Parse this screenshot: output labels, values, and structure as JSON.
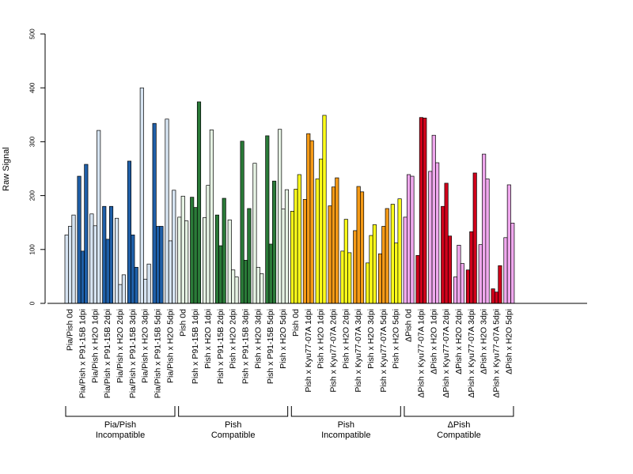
{
  "chart_data": {
    "type": "bar",
    "ylabel": "Raw Signal",
    "ylim": [
      0,
      500
    ],
    "yticks": [
      0,
      100,
      200,
      300,
      400,
      500
    ],
    "grid": false,
    "colors": {
      "blue": "#1f5fa8",
      "light_blue": "#d6e4f2",
      "green": "#2a7a38",
      "light_green": "#e6f3e4",
      "yellow": "#ffff1a",
      "orange": "#f59a17",
      "red": "#d0021b",
      "pink": "#f0a8ee"
    },
    "categories": [
      "Pia/Pish 0d",
      "Pia/Pish x P91-15B 1dpi",
      "Pia/Pish x H2O 1dpi",
      "Pia/Pish x P91-15B 2dpi",
      "Pia/Pish x H2O 2dpi",
      "Pia/Pish x P91-15B 3dpi",
      "Pia/Pish x H2O 3dpi",
      "Pia/Pish x P91-15B 5dpi",
      "Pia/Pish x H2O 5dpi",
      "Pish 0d",
      "Pish x P91-15B 1dpi",
      "Pish x H2O 1dpi",
      "Pish x P91-15B 2dpi",
      "Pish x H2O 2dpi",
      "Pish x P91-15B 3dpi",
      "Pish x H2O 3dpi",
      "Pish x P91-15B 5dpi",
      "Pish x H2O 5dpi",
      "Pish 0d",
      "Pish x Kyu77-07A 1dpi",
      "Pish x H2O 1dpi",
      "Pish x Kyu77-07A 2dpi",
      "Pish x H2O 2dpi",
      "Pish x Kyu77-07A 3dpi",
      "Pish x H2O 3dpi",
      "Pish x Kyu77-07A 5dpi",
      "Pish x H2O 5dpi",
      "ΔPish 0d",
      "ΔPish x Kyu77-07A 1dpi",
      "ΔPish x H2O 1dpi",
      "ΔPish x Kyu77-07A 2dpi",
      "ΔPish x H2O 2dpi",
      "ΔPish x Kyu77-07A 3dpi",
      "ΔPish x H2O 3dpi",
      "ΔPish x Kyu77-07A 5dpi",
      "ΔPish x H2O 5dpi"
    ],
    "values": [
      [
        127,
        143,
        164
      ],
      [
        236,
        97,
        258
      ],
      [
        166,
        144,
        321
      ],
      [
        180,
        119,
        180
      ],
      [
        158,
        35,
        53
      ],
      [
        264,
        127,
        67
      ],
      [
        400,
        45,
        73
      ],
      [
        334,
        143,
        143
      ],
      [
        342,
        116,
        210
      ],
      [
        160,
        199,
        153
      ],
      [
        197,
        178,
        374
      ],
      [
        159,
        219,
        322
      ],
      [
        164,
        107,
        195
      ],
      [
        155,
        62,
        49
      ],
      [
        301,
        80,
        176
      ],
      [
        260,
        67,
        55
      ],
      [
        311,
        110,
        227
      ],
      [
        323,
        175,
        211
      ],
      [
        171,
        212,
        239
      ],
      [
        193,
        315,
        302
      ],
      [
        231,
        268,
        349
      ],
      [
        181,
        216,
        233
      ],
      [
        97,
        156,
        94
      ],
      [
        135,
        217,
        207
      ],
      [
        75,
        126,
        146
      ],
      [
        92,
        143,
        176
      ],
      [
        184,
        112,
        194
      ],
      [
        160,
        239,
        236
      ],
      [
        89,
        345,
        344
      ],
      [
        245,
        312,
        261
      ],
      [
        180,
        223,
        125
      ],
      [
        49,
        108,
        74
      ],
      [
        62,
        133,
        242
      ],
      [
        109,
        277,
        231
      ],
      [
        27,
        21,
        70
      ],
      [
        122,
        220,
        149
      ]
    ],
    "bar_colors": [
      "light_blue",
      "blue",
      "light_blue",
      "blue",
      "light_blue",
      "blue",
      "light_blue",
      "blue",
      "light_blue",
      "light_green",
      "green",
      "light_green",
      "green",
      "light_green",
      "green",
      "light_green",
      "green",
      "light_green",
      "yellow",
      "orange",
      "yellow",
      "orange",
      "yellow",
      "orange",
      "yellow",
      "orange",
      "yellow",
      "pink",
      "red",
      "pink",
      "red",
      "pink",
      "red",
      "pink",
      "red",
      "pink"
    ],
    "groups": [
      {
        "line1": "Pia/Pish",
        "line2": "Incompatible",
        "start": 0,
        "end": 8
      },
      {
        "line1": "Pish",
        "line2": "Compatible",
        "start": 9,
        "end": 17
      },
      {
        "line1": "Pish",
        "line2": "Incompatible",
        "start": 18,
        "end": 26
      },
      {
        "line1": "ΔPish",
        "line2": "Compatible",
        "start": 27,
        "end": 35
      }
    ]
  }
}
